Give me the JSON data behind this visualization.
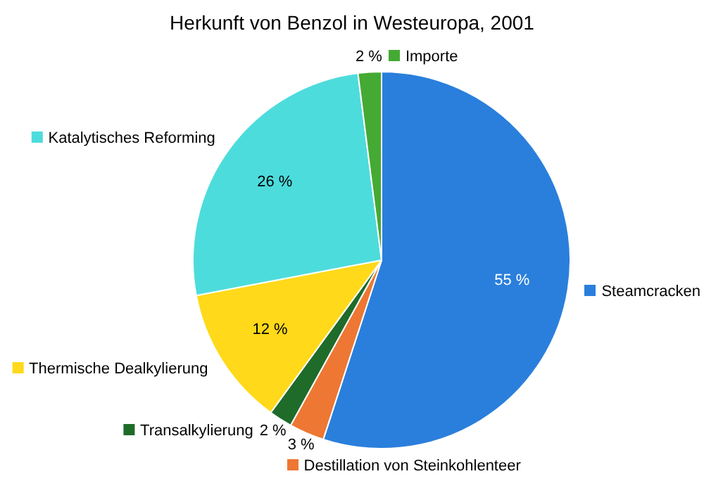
{
  "chart_data": {
    "type": "pie",
    "title": "Herkunft von Benzol in Westeuropa, 2001",
    "categories": [
      "Steamcracken",
      "Destillation von Steinkohlenteer",
      "Transalkylierung",
      "Thermische Dealkylierung",
      "Katalytisches Reforming",
      "Importe"
    ],
    "values": [
      55,
      3,
      2,
      12,
      26,
      2
    ],
    "colors": [
      "#2a7fdc",
      "#ee7733",
      "#1e6b2a",
      "#ffd91a",
      "#4ddcdc",
      "#44aa33"
    ],
    "value_labels": [
      "55 %",
      "3 %",
      "2 %",
      "12 %",
      "26 %",
      "2 %"
    ],
    "legend": "left"
  }
}
